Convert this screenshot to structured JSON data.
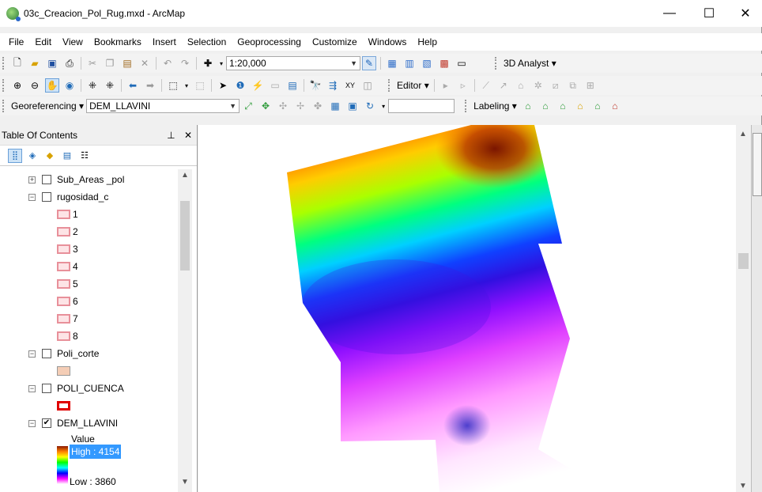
{
  "window": {
    "title": "03c_Creacion_Pol_Rug.mxd - ArcMap",
    "minimize": "—",
    "maximize": "☐",
    "close": "✕"
  },
  "menu": [
    "File",
    "Edit",
    "View",
    "Bookmarks",
    "Insert",
    "Selection",
    "Geoprocessing",
    "Customize",
    "Windows",
    "Help"
  ],
  "standard_toolbar": {
    "scale": "1:20,000",
    "analyst_label": "3D Analyst"
  },
  "tools_toolbar": {
    "editor_label": "Editor"
  },
  "georef_toolbar": {
    "georeferencing_label": "Georeferencing",
    "layer_select": "DEM_LLAVINI",
    "labeling_label": "Labeling"
  },
  "toc": {
    "title": "Table Of Contents",
    "pin": "ᵖ",
    "close": "✕",
    "layers": [
      {
        "name": "Sub_Areas _pol",
        "checked": false,
        "expand": "+"
      },
      {
        "name": "rugosidad_c",
        "checked": false,
        "expand": "−",
        "classes": [
          "1",
          "2",
          "3",
          "4",
          "5",
          "6",
          "7",
          "8"
        ]
      },
      {
        "name": "Poli_corte",
        "checked": false,
        "expand": "−"
      },
      {
        "name": "POLI_CUENCA",
        "checked": false,
        "expand": "−"
      },
      {
        "name": "DEM_LLAVINI",
        "checked": true,
        "expand": "−",
        "legend_title": "Value",
        "high": "High : 4154",
        "low": "Low : 3860"
      }
    ]
  },
  "colors": {
    "rug_outline": "#e8909a",
    "rug_fill": "#fde4e6",
    "poli_corte_fill": "#f4cdb6",
    "poli_cuenca_outline": "#e00000",
    "selected_bg": "#3399ff"
  }
}
